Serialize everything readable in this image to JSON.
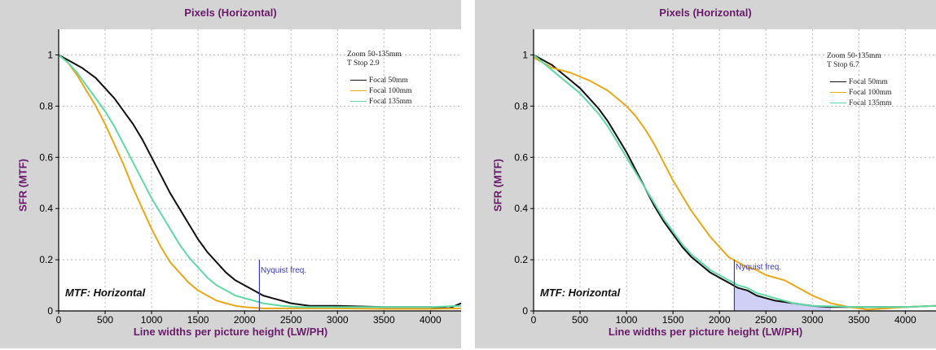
{
  "panels": [
    {
      "title": "Pixels (Horizontal)",
      "xlabel": "Line widths per picture height (LW/PH)",
      "ylabel": "SFR (MTF)",
      "annotation": "MTF: Horizontal",
      "legend_head": [
        "Zoom 50-135mm",
        "T Stop 2.9"
      ],
      "legend": [
        "Focal 50mm",
        "Focal 100mm",
        "Focal 135mm"
      ],
      "nyquist_label": "Nyquist freq."
    },
    {
      "title": "Pixels (Horizontal)",
      "xlabel": "Line widths per picture height (LW/PH)",
      "ylabel": "SFR (MTF)",
      "annotation": "MTF: Horizontal",
      "legend_head": [
        "Zoom 50-135mm",
        "T Stop 6.7"
      ],
      "legend": [
        "Focal 50mm",
        "Focal 100mm",
        "Focal 135mm"
      ],
      "nyquist_label": "Nyquist freq."
    }
  ],
  "chart_data": [
    {
      "type": "line",
      "title": "Pixels (Horizontal)",
      "xlabel": "Line widths per picture height (LW/PH)",
      "ylabel": "SFR (MTF)",
      "xlim": [
        0,
        4330
      ],
      "ylim": [
        0,
        1.1
      ],
      "xticks": [
        0,
        500,
        1000,
        1500,
        2000,
        2500,
        3000,
        3500,
        4000
      ],
      "yticks": [
        0,
        0.2,
        0.4,
        0.6,
        0.8,
        1
      ],
      "grid": true,
      "legend_position": "top-right",
      "nyquist_x": 2160,
      "nyquist_top": 0.2,
      "nyquist_shaded": false,
      "series": [
        {
          "name": "Focal 50mm",
          "color": "#111111",
          "x": [
            0,
            100,
            250,
            400,
            500,
            600,
            700,
            800,
            900,
            1000,
            1100,
            1200,
            1300,
            1400,
            1500,
            1600,
            1700,
            1800,
            1900,
            2000,
            2100,
            2200,
            2300,
            2400,
            2500,
            2700,
            3000,
            3500,
            4000,
            4200,
            4330
          ],
          "y": [
            1.0,
            0.98,
            0.95,
            0.91,
            0.87,
            0.83,
            0.78,
            0.73,
            0.67,
            0.6,
            0.53,
            0.46,
            0.4,
            0.34,
            0.28,
            0.23,
            0.19,
            0.15,
            0.12,
            0.1,
            0.08,
            0.06,
            0.05,
            0.04,
            0.03,
            0.02,
            0.02,
            0.015,
            0.015,
            0.01,
            0.03
          ]
        },
        {
          "name": "Focal 100mm",
          "color": "#e8a817",
          "x": [
            0,
            100,
            200,
            300,
            400,
            500,
            600,
            700,
            800,
            900,
            1000,
            1100,
            1200,
            1300,
            1400,
            1500,
            1600,
            1700,
            1800,
            1900,
            2000,
            2200,
            2400,
            3000,
            3500,
            4000,
            4330
          ],
          "y": [
            1.0,
            0.97,
            0.92,
            0.86,
            0.8,
            0.73,
            0.65,
            0.57,
            0.48,
            0.4,
            0.32,
            0.25,
            0.19,
            0.15,
            0.11,
            0.08,
            0.06,
            0.04,
            0.03,
            0.02,
            0.015,
            0.01,
            0.01,
            0.01,
            0.008,
            0.008,
            0.01
          ]
        },
        {
          "name": "Focal 135mm",
          "color": "#5fd9a6",
          "x": [
            0,
            100,
            200,
            300,
            400,
            500,
            600,
            700,
            800,
            900,
            1000,
            1100,
            1200,
            1300,
            1400,
            1500,
            1600,
            1700,
            1800,
            1900,
            2000,
            2100,
            2200,
            2400,
            2600,
            3000,
            3500,
            4000,
            4330
          ],
          "y": [
            1.0,
            0.97,
            0.93,
            0.88,
            0.83,
            0.78,
            0.72,
            0.65,
            0.58,
            0.51,
            0.44,
            0.38,
            0.32,
            0.26,
            0.21,
            0.17,
            0.13,
            0.1,
            0.08,
            0.06,
            0.05,
            0.04,
            0.03,
            0.02,
            0.015,
            0.015,
            0.015,
            0.015,
            0.02
          ]
        }
      ]
    },
    {
      "type": "line",
      "title": "Pixels (Horizontal)",
      "xlabel": "Line widths per picture height (LW/PH)",
      "ylabel": "SFR (MTF)",
      "xlim": [
        0,
        4330
      ],
      "ylim": [
        0,
        1.1
      ],
      "xticks": [
        0,
        500,
        1000,
        1500,
        2000,
        2500,
        3000,
        3500,
        4000
      ],
      "yticks": [
        0,
        0.2,
        0.4,
        0.6,
        0.8,
        1
      ],
      "grid": true,
      "legend_position": "top-right",
      "nyquist_x": 2160,
      "nyquist_top": 0.2,
      "nyquist_shaded": true,
      "shade_series": 0,
      "series": [
        {
          "name": "Focal 50mm",
          "color": "#111111",
          "x": [
            0,
            100,
            200,
            300,
            400,
            500,
            600,
            700,
            800,
            900,
            1000,
            1100,
            1200,
            1300,
            1400,
            1500,
            1600,
            1700,
            1800,
            1900,
            2000,
            2100,
            2200,
            2300,
            2400,
            2500,
            2600,
            2800,
            3000,
            3200,
            3500,
            4000,
            4330
          ],
          "y": [
            1.0,
            0.98,
            0.96,
            0.93,
            0.9,
            0.87,
            0.83,
            0.79,
            0.74,
            0.68,
            0.62,
            0.55,
            0.48,
            0.41,
            0.35,
            0.3,
            0.25,
            0.21,
            0.18,
            0.15,
            0.13,
            0.11,
            0.09,
            0.08,
            0.06,
            0.05,
            0.04,
            0.03,
            0.02,
            0.015,
            0.015,
            0.015,
            0.02
          ]
        },
        {
          "name": "Focal 100mm",
          "color": "#e8a817",
          "x": [
            0,
            200,
            400,
            600,
            800,
            1000,
            1100,
            1200,
            1300,
            1400,
            1500,
            1600,
            1700,
            1800,
            1900,
            2000,
            2100,
            2200,
            2300,
            2400,
            2500,
            2600,
            2700,
            2800,
            2900,
            3000,
            3200,
            3400,
            3600,
            3800,
            4000,
            4330
          ],
          "y": [
            0.99,
            0.95,
            0.93,
            0.9,
            0.86,
            0.8,
            0.76,
            0.71,
            0.65,
            0.58,
            0.51,
            0.45,
            0.39,
            0.34,
            0.29,
            0.25,
            0.21,
            0.19,
            0.17,
            0.16,
            0.14,
            0.13,
            0.12,
            0.1,
            0.08,
            0.06,
            0.03,
            0.015,
            0.005,
            0.01,
            0.015,
            0.02
          ]
        },
        {
          "name": "Focal 135mm",
          "color": "#5fd9a6",
          "x": [
            0,
            100,
            200,
            300,
            400,
            500,
            600,
            700,
            800,
            900,
            1000,
            1100,
            1200,
            1300,
            1400,
            1500,
            1600,
            1700,
            1800,
            1900,
            2000,
            2100,
            2200,
            2300,
            2400,
            2600,
            2800,
            3000,
            3500,
            4000,
            4330
          ],
          "y": [
            1.0,
            0.97,
            0.94,
            0.91,
            0.88,
            0.85,
            0.81,
            0.77,
            0.72,
            0.66,
            0.6,
            0.54,
            0.48,
            0.42,
            0.36,
            0.31,
            0.26,
            0.22,
            0.19,
            0.16,
            0.14,
            0.12,
            0.1,
            0.09,
            0.07,
            0.05,
            0.03,
            0.02,
            0.015,
            0.015,
            0.02
          ]
        }
      ]
    }
  ]
}
